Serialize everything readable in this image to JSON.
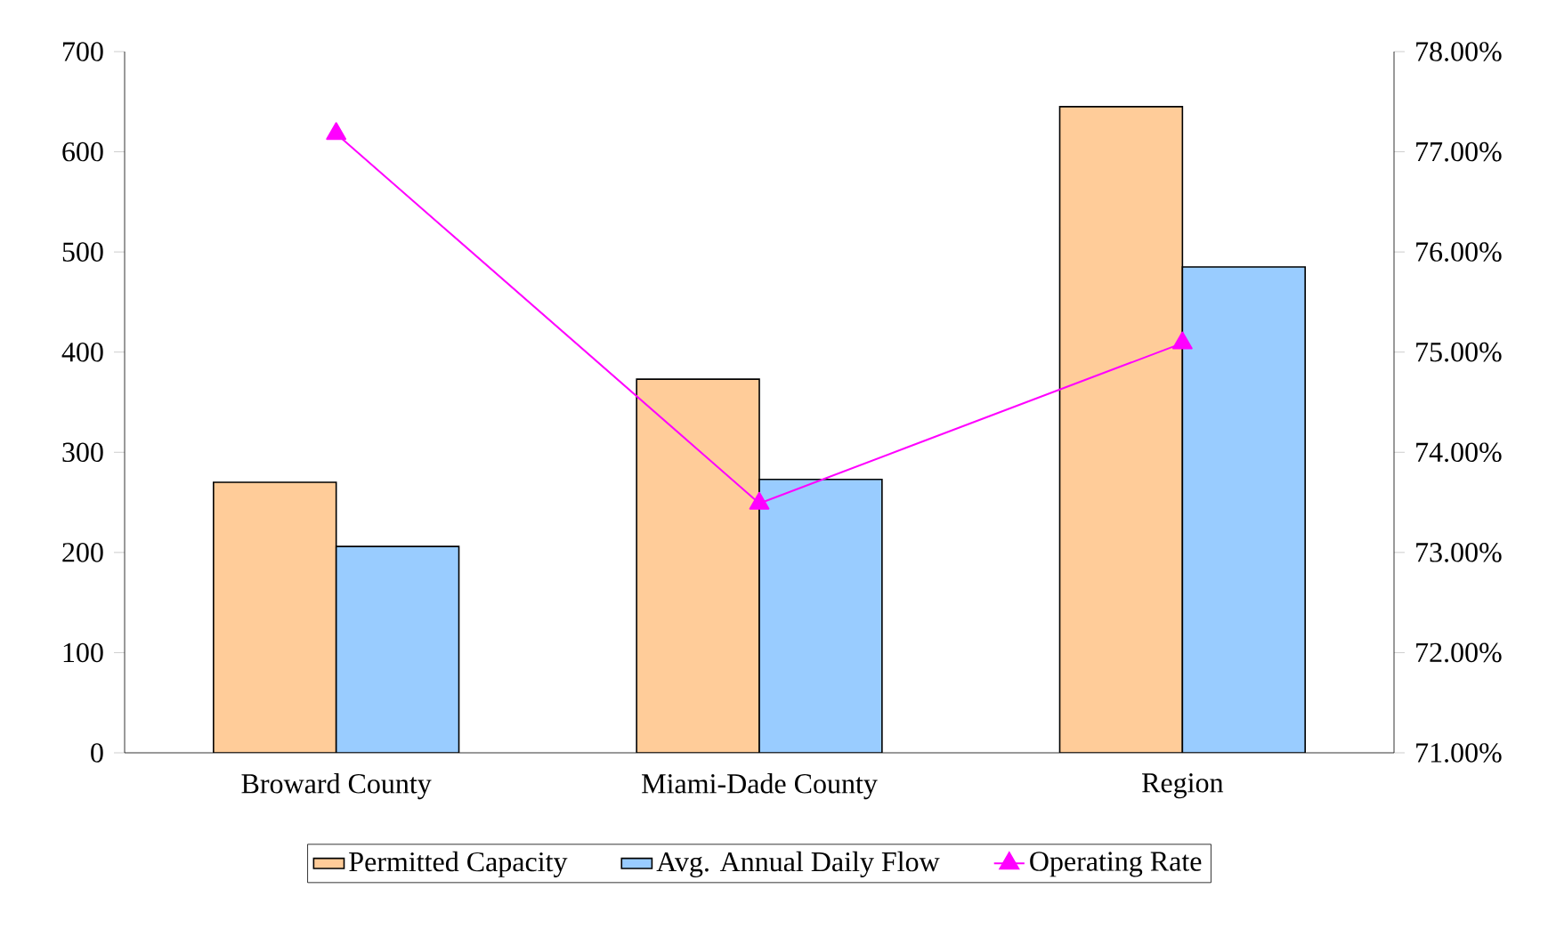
{
  "chart_data": {
    "type": "bar",
    "categories": [
      "Broward County",
      "Miami-Dade County",
      "Region"
    ],
    "series": [
      {
        "name": "Permitted Capacity",
        "color": "#ffcc99",
        "values": [
          270,
          373,
          645
        ]
      },
      {
        "name": "Avg. Annual Daily Flow",
        "color": "#99ccff",
        "values": [
          206,
          273,
          485
        ]
      },
      {
        "name": "Operating Rate",
        "type": "line",
        "axis": "y2",
        "color": "#ff00ff",
        "values": [
          77.18,
          73.49,
          75.09
        ]
      }
    ],
    "ylim": [
      0,
      700
    ],
    "yticks": [
      0,
      100,
      200,
      300,
      400,
      500,
      600,
      700
    ],
    "y2lim": [
      71,
      78
    ],
    "y2ticks": [
      {
        "value": 71,
        "label": "71.00%"
      },
      {
        "value": 72,
        "label": "72.00%"
      },
      {
        "value": 73,
        "label": "73.00%"
      },
      {
        "value": 74,
        "label": "74.00%"
      },
      {
        "value": 75,
        "label": "75.00%"
      },
      {
        "value": 76,
        "label": "76.00%"
      },
      {
        "value": 77,
        "label": "77.00%"
      },
      {
        "value": 78,
        "label": "78.00%"
      }
    ],
    "marker": "triangle",
    "legend": "bottom",
    "grid": false
  }
}
